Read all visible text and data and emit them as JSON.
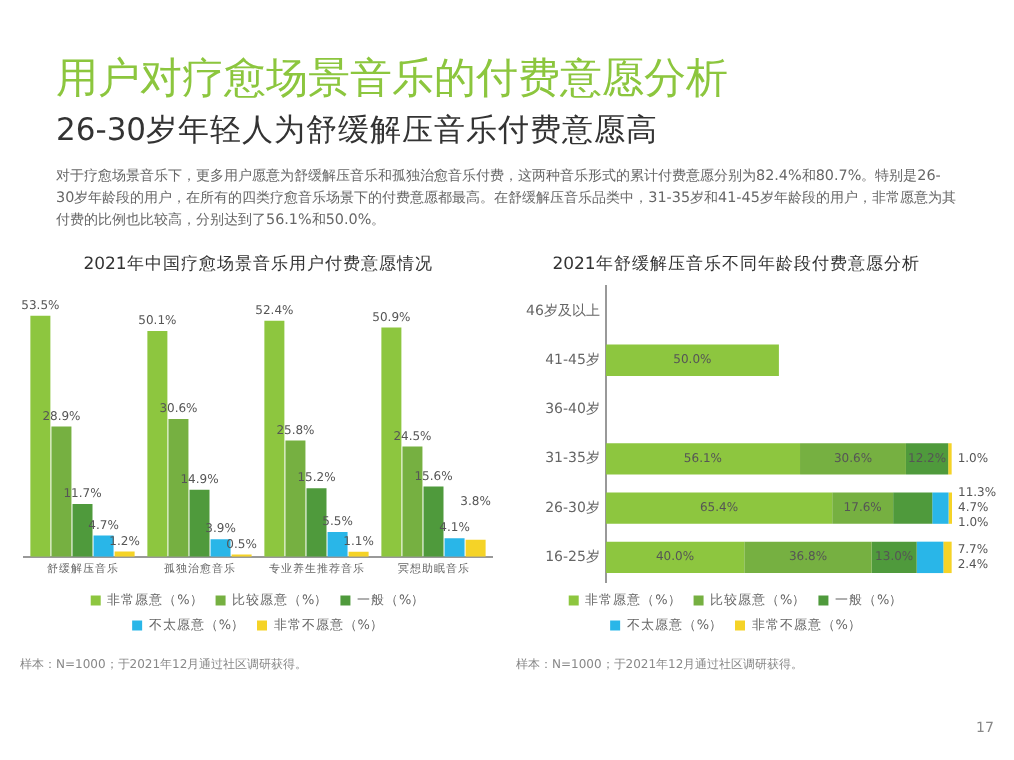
{
  "chart_data": [
    {
      "type": "other",
      "title": "用户对疗愈场景音乐的付费意愿分析",
      "subtitle": "26-30岁年轻人为舒缓解压音乐付费意愿高",
      "annotations": [
        "对于疗愈场景音乐下，更多用户愿意为舒缓解压音乐和孤独治愈音乐付费，这两种音乐形式的累计付费意愿分别为82.4%和80.7%。特别是26-30岁年龄段的用户，在所有的四类疗愈音乐场景下的付费意愿都最高。在舒缓解压音乐品类中，31-35岁和41-45岁年龄段的用户，非常愿意为其付费的比例也比较高，分别达到了56.1%和50.0%。",
        "17"
      ]
    },
    {
      "type": "bar",
      "title": "2021年中国疗愈场景音乐用户付费意愿情况",
      "categories": [
        "舒缓解压音乐",
        "孤独治愈音乐",
        "专业养生推荐音乐",
        "冥想助眠音乐"
      ],
      "series": [
        {
          "name": "非常愿意（%）",
          "color": "#8dc63f",
          "values": [
            53.5,
            50.1,
            52.4,
            50.9
          ],
          "value_labels": [
            "53.5%",
            "50.1%",
            "52.4%",
            "50.9%"
          ]
        },
        {
          "name": "比较愿意（%）",
          "color": "#76b041",
          "values": [
            28.9,
            30.6,
            25.8,
            24.5
          ],
          "value_labels": [
            "28.9%",
            "30.6%",
            "25.8%",
            "24.5%"
          ]
        },
        {
          "name": "一般（%）",
          "color": "#4f9a3c",
          "values": [
            11.7,
            14.9,
            15.2,
            15.6
          ],
          "value_labels": [
            "11.7%",
            "14.9%",
            "15.2%",
            "15.6%"
          ]
        },
        {
          "name": "不太愿意（%）",
          "color": "#29b6e8",
          "values": [
            4.7,
            3.9,
            5.5,
            4.1
          ],
          "value_labels": [
            "4.7%",
            "3.9%",
            "5.5%",
            "4.1%"
          ]
        },
        {
          "name": "非常不愿意（%）",
          "color": "#f5d327",
          "values": [
            1.2,
            0.5,
            1.1,
            3.8
          ],
          "value_labels": [
            "1.2%",
            "0.5%",
            "1.1%",
            "3.8%"
          ]
        }
      ],
      "legend": "bottom",
      "grid": false,
      "tick_labels": "x",
      "annotations": [
        "样本：N=1000；于2021年12月通过社区调研获得。"
      ]
    },
    {
      "type": "bar",
      "orientation": "horizontal",
      "stacked": true,
      "title": "2021年舒缓解压音乐不同年龄段付费意愿分析",
      "categories": [
        "46岁及以上",
        "41-45岁",
        "36-40岁",
        "31-35岁",
        "26-30岁",
        "16-25岁"
      ],
      "series": [
        {
          "name": "非常愿意（%）",
          "color": "#8dc63f",
          "values": [
            null,
            50.0,
            null,
            56.1,
            65.4,
            40.0
          ],
          "value_labels": [
            null,
            "50.0%",
            null,
            "56.1%",
            "65.4%",
            "40.0%"
          ]
        },
        {
          "name": "比较愿意（%）",
          "color": "#76b041",
          "values": [
            null,
            null,
            null,
            30.6,
            17.6,
            36.8
          ],
          "value_labels": [
            null,
            null,
            null,
            "30.6%",
            "17.6%",
            "36.8%"
          ]
        },
        {
          "name": "一般（%）",
          "color": "#4f9a3c",
          "values": [
            null,
            null,
            null,
            12.2,
            11.3,
            13.0
          ],
          "value_labels": [
            null,
            null,
            null,
            "12.2%",
            "11.3%",
            "13.0%"
          ]
        },
        {
          "name": "不太愿意（%）",
          "color": "#29b6e8",
          "values": [
            null,
            null,
            null,
            null,
            4.7,
            7.7
          ],
          "value_labels": [
            null,
            null,
            null,
            null,
            "4.7%",
            "7.7%"
          ]
        },
        {
          "name": "非常不愿意（%）",
          "color": "#f5d327",
          "values": [
            null,
            null,
            null,
            1.0,
            1.0,
            2.4
          ],
          "value_labels": [
            null,
            null,
            null,
            "1.0%",
            "1.0%",
            "2.4%"
          ]
        }
      ],
      "legend": "bottom",
      "grid": false,
      "tick_labels": "y",
      "annotations": [
        "样本：N=1000；于2021年12月通过社区调研获得。"
      ]
    }
  ]
}
